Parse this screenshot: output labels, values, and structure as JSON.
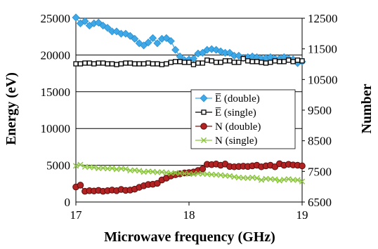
{
  "chart_data": {
    "type": "line",
    "xlabel": "Microwave frequency (GHz)",
    "ylabel": "Energy (eV)",
    "y2label": "Number",
    "xlim": [
      17,
      19
    ],
    "ylim": [
      0,
      25000
    ],
    "y2lim": [
      6500,
      12500
    ],
    "x_ticks": [
      "17",
      "18",
      "19"
    ],
    "y_ticks": [
      "0",
      "5000",
      "10000",
      "15000",
      "20000",
      "25000"
    ],
    "y2_ticks": [
      "6500",
      "7500",
      "8500",
      "9500",
      "10500",
      "11500",
      "12500"
    ],
    "grid": "horizontal",
    "legend_position": "center-right",
    "x": [
      17.0,
      17.04,
      17.08,
      17.12,
      17.16,
      17.2,
      17.24,
      17.28,
      17.32,
      17.36,
      17.4,
      17.44,
      17.48,
      17.52,
      17.56,
      17.6,
      17.64,
      17.68,
      17.72,
      17.76,
      17.8,
      17.84,
      17.88,
      17.92,
      17.96,
      18.0,
      18.04,
      18.08,
      18.12,
      18.16,
      18.2,
      18.24,
      18.28,
      18.32,
      18.36,
      18.4,
      18.44,
      18.48,
      18.52,
      18.56,
      18.6,
      18.64,
      18.68,
      18.72,
      18.76,
      18.8,
      18.84,
      18.88,
      18.92,
      18.96,
      19.0
    ],
    "series": [
      {
        "name": "E̅ (double)",
        "axis": "left",
        "color": "#3fa9e8",
        "marker": "diamond",
        "values": [
          25100,
          24300,
          24600,
          24000,
          24300,
          24400,
          24000,
          23700,
          23200,
          23200,
          22900,
          22900,
          22600,
          22200,
          21600,
          21300,
          21700,
          22300,
          21600,
          22200,
          22300,
          21900,
          20700,
          19800,
          19300,
          19400,
          19500,
          20200,
          20300,
          20700,
          20800,
          20700,
          20500,
          20300,
          20300,
          19900,
          19900,
          19600,
          19700,
          19800,
          19700,
          19500,
          19600,
          19700,
          19500,
          19500,
          19700,
          19500,
          19400,
          18900,
          19100
        ]
      },
      {
        "name": "E̅ (single)",
        "axis": "left",
        "color": "#000000",
        "marker": "square-open",
        "values": [
          18800,
          18800,
          18900,
          18900,
          18800,
          18900,
          18900,
          18800,
          18800,
          18700,
          18800,
          18900,
          18900,
          18800,
          18800,
          18800,
          18900,
          18800,
          18800,
          18700,
          18800,
          19000,
          19100,
          19100,
          19000,
          19000,
          18700,
          18900,
          18900,
          19300,
          19200,
          19000,
          19000,
          19200,
          19200,
          19000,
          19000,
          19500,
          19200,
          19100,
          19100,
          19000,
          18900,
          19000,
          19200,
          19100,
          19100,
          19300,
          19100,
          19300,
          19200
        ]
      },
      {
        "name": "N (double)",
        "axis": "right",
        "color": "#b22222",
        "marker": "circle",
        "values": [
          6990,
          7050,
          6850,
          6870,
          6860,
          6880,
          6850,
          6870,
          6890,
          6870,
          6910,
          6880,
          6890,
          6920,
          6980,
          7030,
          7070,
          7080,
          7110,
          7220,
          7280,
          7350,
          7390,
          7420,
          7450,
          7460,
          7480,
          7530,
          7580,
          7730,
          7720,
          7740,
          7700,
          7740,
          7660,
          7650,
          7660,
          7670,
          7660,
          7680,
          7700,
          7650,
          7680,
          7700,
          7650,
          7750,
          7700,
          7730,
          7710,
          7700,
          7680
        ]
      },
      {
        "name": "N (single)",
        "axis": "right",
        "color": "#8cc63f",
        "marker": "x",
        "values": [
          7680,
          7720,
          7650,
          7640,
          7630,
          7600,
          7610,
          7590,
          7600,
          7570,
          7590,
          7580,
          7530,
          7540,
          7520,
          7480,
          7500,
          7490,
          7470,
          7480,
          7460,
          7440,
          7450,
          7440,
          7430,
          7420,
          7410,
          7430,
          7420,
          7410,
          7400,
          7390,
          7380,
          7360,
          7350,
          7320,
          7300,
          7290,
          7280,
          7300,
          7280,
          7220,
          7260,
          7250,
          7240,
          7200,
          7230,
          7250,
          7220,
          7220,
          7170
        ]
      }
    ]
  }
}
